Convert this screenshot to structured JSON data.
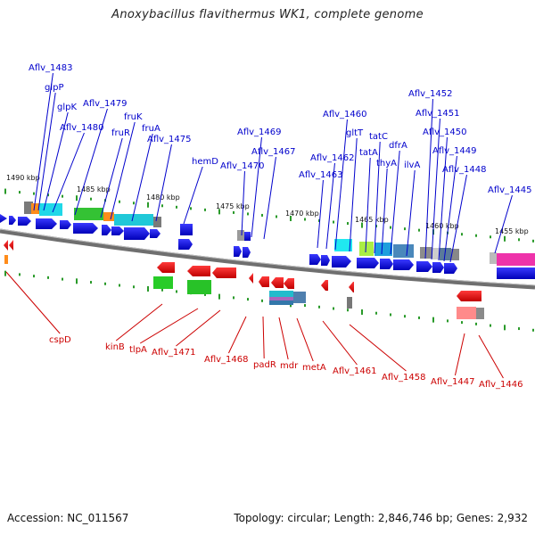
{
  "title": "Anoxybacillus flavithermus WK1, complete genome",
  "footer": {
    "accession": "Accession: NC_011567",
    "stats": "Topology: circular; Length: 2,846,746 bp; Genes: 2,932"
  },
  "colors": {
    "forward": "#0000e6",
    "reverse": "#ee0000",
    "forward_label": "#0000cc",
    "reverse_label": "#cc0000",
    "tick": "#2a9a2a",
    "backbone": "#6f6f6f"
  },
  "scale_labels": [
    "1490 kbp",
    "1485 kbp",
    "1480 kbp",
    "1475 kbp",
    "1470 kbp",
    "1465 kbp",
    "1460 kbp",
    "1455 kbp"
  ],
  "forward_labels": [
    "Aflv_1483",
    "glpP",
    "glpK",
    "Aflv_1480",
    "Aflv_1479",
    "fruR",
    "fruK",
    "fruA",
    "Aflv_1475",
    "hemD",
    "Aflv_1470",
    "Aflv_1469",
    "Aflv_1467",
    "Aflv_1463",
    "Aflv_1462",
    "Aflv_1460",
    "gltT",
    "tatA",
    "tatC",
    "thyA",
    "dfrA",
    "ilvA",
    "Aflv_1452",
    "Aflv_1451",
    "Aflv_1450",
    "Aflv_1449",
    "Aflv_1448",
    "Aflv_1445"
  ],
  "reverse_labels": [
    "cspD",
    "kinB",
    "tlpA",
    "Aflv_1471",
    "Aflv_1468",
    "padR",
    "mdr",
    "metA",
    "Aflv_1461",
    "Aflv_1458",
    "Aflv_1447",
    "Aflv_1446"
  ]
}
